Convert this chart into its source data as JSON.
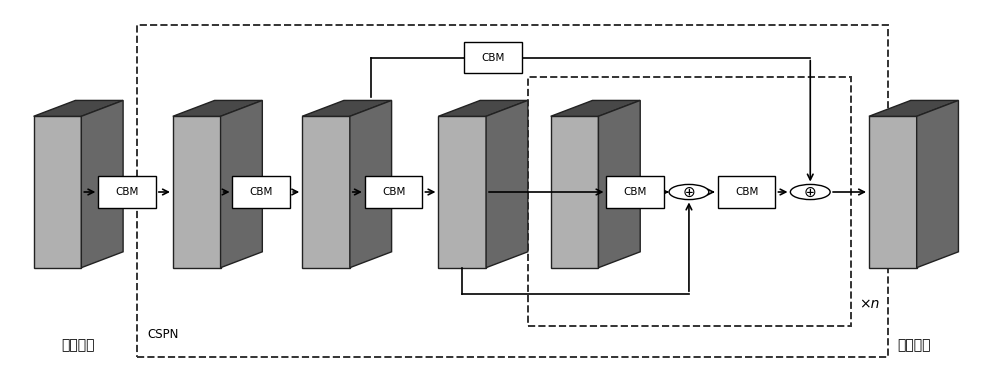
{
  "fig_width": 10.0,
  "fig_height": 3.84,
  "bg_color": "#ffffff",
  "face_color": "#b0b0b0",
  "top_color": "#484848",
  "side_color": "#686868",
  "cbm_fill": "#ffffff",
  "cbm_edge": "#000000",
  "line_color": "#000000",
  "input_label": "输入张量",
  "output_label": "输出张量",
  "xn_label": "×n",
  "cspn_label": "CSPN",
  "cbm_label": "CBM"
}
